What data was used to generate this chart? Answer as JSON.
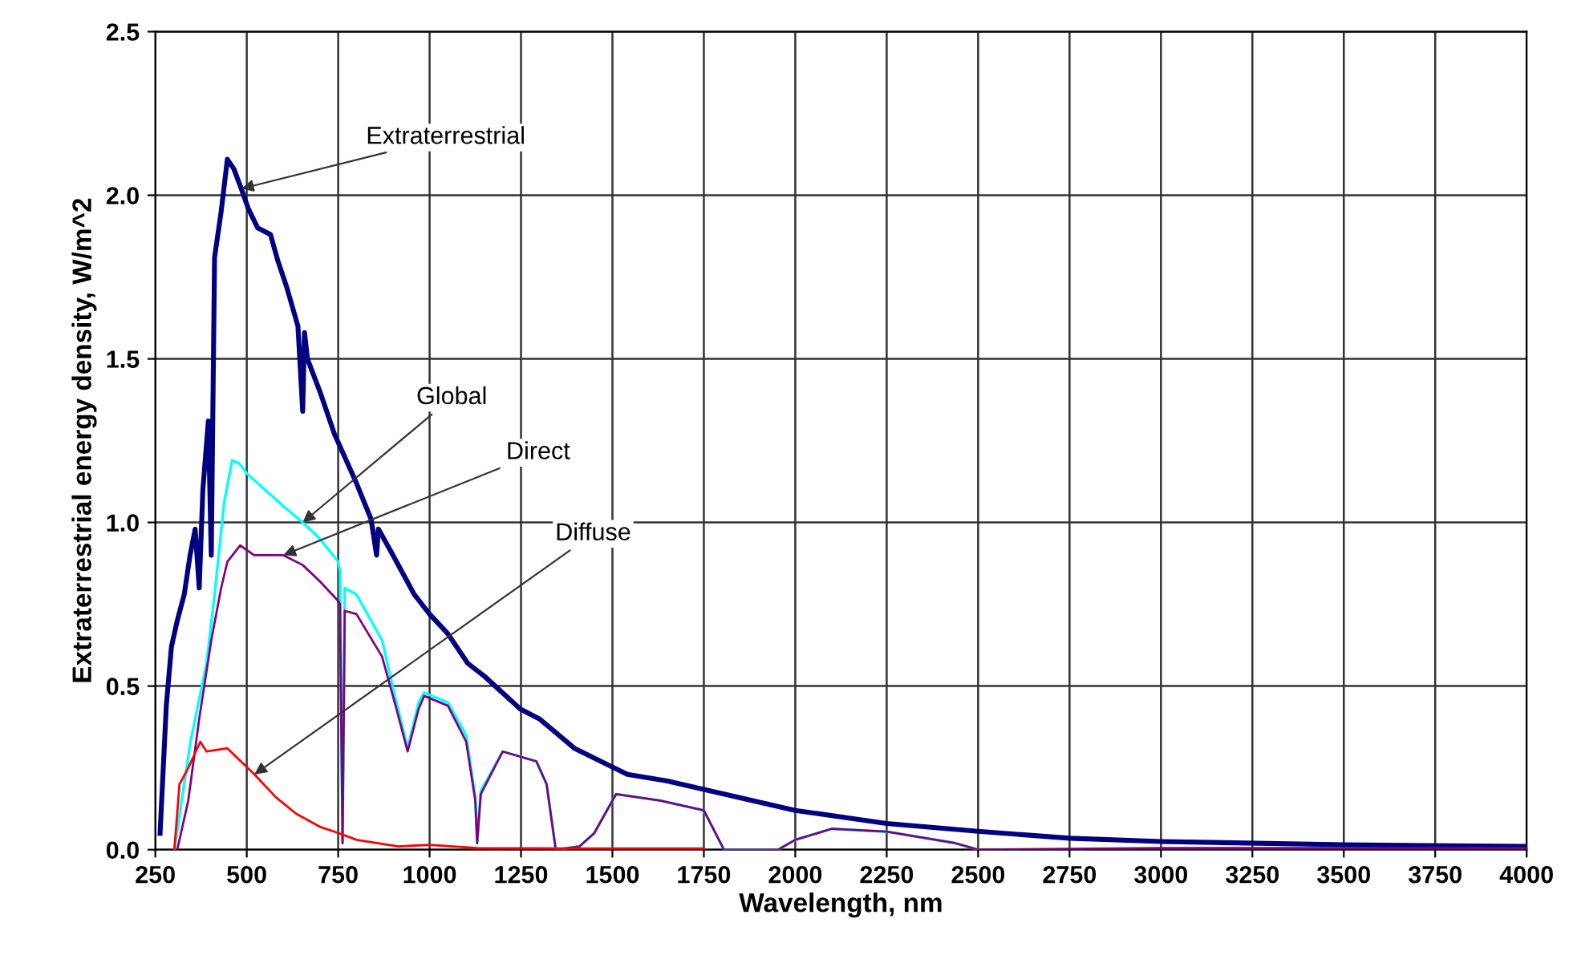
{
  "chart_data": {
    "type": "line",
    "xlabel": "Wavelength, nm",
    "ylabel": "Extraterrestrial energy density, W/m^2",
    "xlim": [
      250,
      4000
    ],
    "xticks": [
      250,
      500,
      750,
      1000,
      1250,
      1500,
      1750,
      2000,
      2250,
      2500,
      2750,
      3000,
      3250,
      3500,
      3750,
      4000
    ],
    "ylim": [
      0,
      2.5
    ],
    "yticks": [
      {
        "value": 0,
        "label": "0.0"
      },
      0.5,
      {
        "value": 1,
        "label": "1.0"
      },
      1.5,
      {
        "value": 2,
        "label": "2.0"
      },
      2.5
    ],
    "grid": true,
    "legend": false,
    "marker": "none",
    "line_style": "solid",
    "series": [
      {
        "color": "#000080",
        "x": [
          263,
          280,
          294,
          310,
          329,
          345,
          359,
          370,
          380,
          395,
          403,
          412,
          430,
          447,
          465,
          485,
          504,
          530,
          565,
          585,
          609,
          640,
          653,
          658,
          666,
          700,
          740,
          800,
          840,
          855,
          860,
          900,
          958,
          1000,
          1050,
          1104,
          1150,
          1248,
          1300,
          1396,
          1541,
          1650,
          1750,
          2000,
          2250,
          2500,
          2750,
          3000,
          3500,
          4000
        ],
        "values": [
          0.05,
          0.44,
          0.62,
          0.7,
          0.78,
          0.9,
          0.98,
          0.8,
          1.1,
          1.31,
          0.9,
          1.81,
          1.95,
          2.11,
          2.08,
          2.02,
          1.96,
          1.9,
          1.88,
          1.8,
          1.72,
          1.6,
          1.34,
          1.58,
          1.5,
          1.4,
          1.27,
          1.12,
          1.01,
          0.9,
          0.98,
          0.9,
          0.78,
          0.72,
          0.66,
          0.57,
          0.53,
          0.43,
          0.4,
          0.31,
          0.23,
          0.21,
          0.184,
          0.12,
          0.08,
          0.056,
          0.035,
          0.025,
          0.015,
          0.01
        ]
      },
      {
        "color": "#00ffff",
        "x": [
          302,
          346,
          390,
          412,
          438,
          460,
          480,
          500,
          550,
          600,
          653,
          700,
          750,
          755,
          762,
          768,
          800,
          870,
          907,
          940,
          970,
          985,
          1050,
          1100,
          1125,
          1130,
          1140,
          1200,
          1292,
          1320,
          1345,
          1410,
          1450,
          1510,
          1630,
          1750,
          1805,
          1953,
          2000,
          2100,
          2250,
          2437,
          2500
        ],
        "values": [
          0,
          0.33,
          0.57,
          0.78,
          1.06,
          1.19,
          1.18,
          1.15,
          1.1,
          1.05,
          1.0,
          0.95,
          0.88,
          0.85,
          0.02,
          0.8,
          0.78,
          0.64,
          0.46,
          0.31,
          0.45,
          0.48,
          0.45,
          0.35,
          0.16,
          0.02,
          0.18,
          0.3,
          0.27,
          0.2,
          0.0,
          0.01,
          0.05,
          0.17,
          0.15,
          0.12,
          0.0,
          0.0,
          0.03,
          0.064,
          0.055,
          0.02,
          0
        ]
      },
      {
        "color": "#800080",
        "x": [
          310,
          340,
          370,
          403,
          430,
          447,
          482,
          520,
          600,
          653,
          700,
          750,
          755,
          762,
          768,
          800,
          870,
          907,
          940,
          970,
          985,
          1050,
          1100,
          1125,
          1130,
          1140,
          1200,
          1292,
          1320,
          1345,
          1410,
          1450,
          1510,
          1630,
          1750,
          1805,
          1953,
          2000,
          2100,
          2250,
          2437,
          2500,
          3000,
          4000
        ],
        "values": [
          0,
          0.15,
          0.4,
          0.64,
          0.8,
          0.88,
          0.93,
          0.9,
          0.9,
          0.87,
          0.82,
          0.76,
          0.75,
          0.02,
          0.73,
          0.72,
          0.59,
          0.44,
          0.3,
          0.43,
          0.47,
          0.44,
          0.33,
          0.15,
          0.02,
          0.17,
          0.3,
          0.27,
          0.2,
          0.0,
          0.01,
          0.05,
          0.17,
          0.15,
          0.12,
          0.0,
          0.0,
          0.03,
          0.064,
          0.055,
          0.02,
          0,
          0.005,
          0.005
        ]
      },
      {
        "color": "#ff0000",
        "x": [
          302,
          316,
          340,
          373,
          390,
          447,
          521,
          580,
          635,
          700,
          753,
          800,
          915,
          1000,
          1130,
          1400,
          1750
        ],
        "values": [
          0,
          0.2,
          0.25,
          0.33,
          0.3,
          0.31,
          0.23,
          0.16,
          0.11,
          0.07,
          0.05,
          0.03,
          0.01,
          0.015,
          0.005,
          0.004,
          0.004
        ]
      }
    ],
    "annotations": [
      {
        "text": "Extraterrestrial",
        "x": 485,
        "y": 2.02
      },
      {
        "text": "Global",
        "x": 653,
        "y": 1.0
      },
      {
        "text": "Direct",
        "x": 600,
        "y": 0.9
      },
      {
        "text": "Diffuse",
        "x": 521,
        "y": 0.23
      }
    ]
  }
}
